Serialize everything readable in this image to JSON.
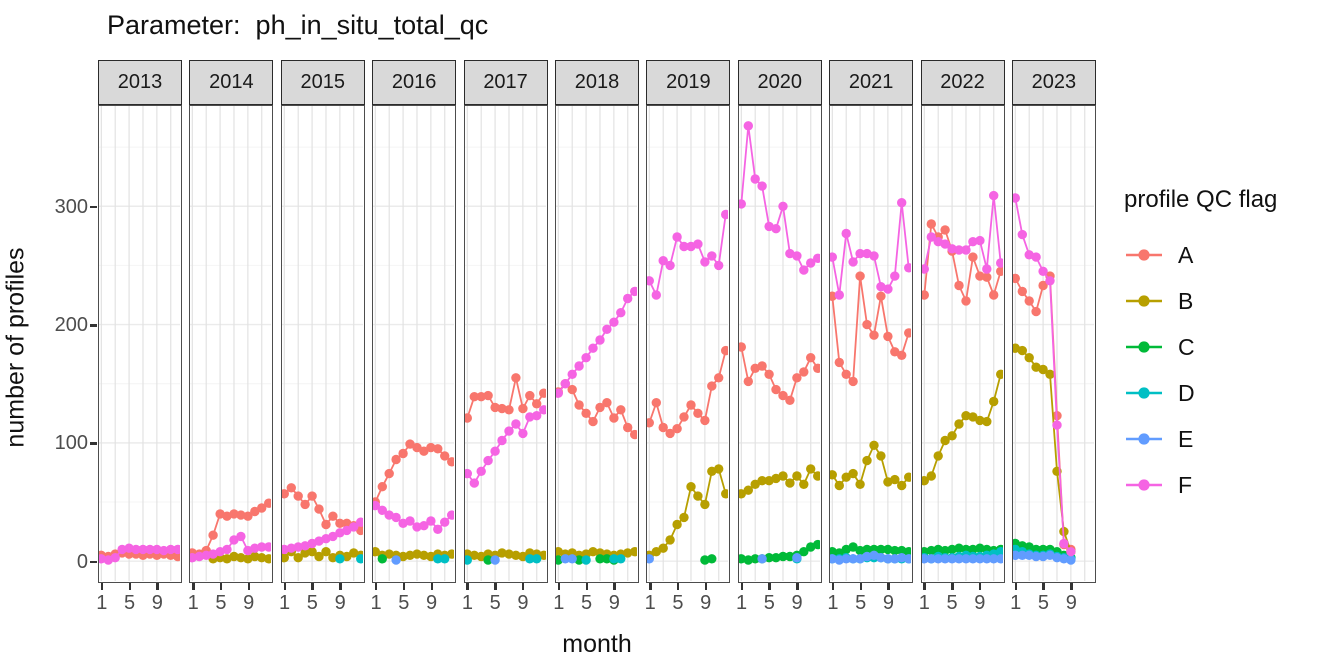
{
  "title": "Parameter:  ph_in_situ_total_qc",
  "axes": {
    "x_label": "month",
    "y_label": "number of profiles",
    "y_ticks": [
      0,
      100,
      200,
      300
    ],
    "x_ticks": [
      1,
      5,
      9
    ]
  },
  "legend": {
    "title": "profile QC flag",
    "entries": [
      {
        "label": "A",
        "color": "#F8766D"
      },
      {
        "label": "B",
        "color": "#B79F00"
      },
      {
        "label": "C",
        "color": "#00BA38"
      },
      {
        "label": "D",
        "color": "#00BFC4"
      },
      {
        "label": "E",
        "color": "#619CFF"
      },
      {
        "label": "F",
        "color": "#F564E3"
      }
    ]
  },
  "chart_data": {
    "type": "line",
    "title": "Parameter:  ph_in_situ_total_qc",
    "xlabel": "month",
    "ylabel": "number of profiles",
    "ylim": [
      -18,
      386
    ],
    "xlim": [
      0.45,
      12.55
    ],
    "y_major_gridlines": [
      0,
      100,
      200,
      300
    ],
    "y_minor_gridlines": [
      50,
      150,
      250,
      350
    ],
    "x_gridlines": [
      1,
      3,
      5,
      7,
      9,
      11
    ],
    "legend_position": "right",
    "series_order": [
      "A",
      "B",
      "C",
      "D",
      "E",
      "F"
    ],
    "series_colors": {
      "A": "#F8766D",
      "B": "#B79F00",
      "C": "#00BA38",
      "D": "#00BFC4",
      "E": "#619CFF",
      "F": "#F564E3"
    },
    "facets": [
      {
        "year": "2013",
        "x": [
          1,
          2,
          3,
          4,
          5,
          6,
          7,
          8,
          9,
          10,
          11,
          12
        ],
        "series": {
          "A": [
            5,
            4,
            6,
            7,
            6,
            6,
            5,
            6,
            5,
            6,
            5,
            4
          ],
          "F": [
            2,
            1,
            3,
            10,
            11,
            10,
            10,
            10,
            10,
            9,
            10,
            10
          ]
        }
      },
      {
        "year": "2014",
        "x": [
          1,
          2,
          3,
          4,
          5,
          6,
          7,
          8,
          9,
          10,
          11,
          12
        ],
        "series": {
          "A": [
            7,
            6,
            9,
            22,
            40,
            38,
            40,
            39,
            38,
            42,
            45,
            49
          ],
          "B": [
            null,
            null,
            null,
            2,
            3,
            2,
            4,
            3,
            2,
            4,
            3,
            2
          ],
          "F": [
            3,
            4,
            5,
            6,
            8,
            10,
            18,
            21,
            9,
            11,
            12,
            12
          ]
        }
      },
      {
        "year": "2015",
        "x": [
          1,
          2,
          3,
          4,
          5,
          6,
          7,
          8,
          9,
          10,
          11,
          12
        ],
        "series": {
          "A": [
            57,
            62,
            55,
            48,
            55,
            44,
            31,
            38,
            32,
            32,
            30,
            26
          ],
          "B": [
            3,
            8,
            3,
            7,
            8,
            4,
            8,
            3,
            5,
            4,
            7,
            5
          ],
          "D": [
            null,
            null,
            null,
            null,
            null,
            null,
            null,
            null,
            2,
            null,
            null,
            2
          ],
          "F": [
            10,
            11,
            12,
            13,
            15,
            17,
            19,
            21,
            24,
            26,
            29,
            33
          ]
        }
      },
      {
        "year": "2016",
        "x": [
          1,
          2,
          3,
          4,
          5,
          6,
          7,
          8,
          9,
          10,
          11,
          12
        ],
        "series": {
          "A": [
            50,
            63,
            74,
            86,
            91,
            99,
            96,
            93,
            96,
            95,
            89,
            84
          ],
          "B": [
            8,
            5,
            6,
            5,
            4,
            5,
            6,
            5,
            4,
            6,
            5,
            6
          ],
          "C": [
            null,
            2,
            null,
            null,
            null,
            null,
            null,
            null,
            null,
            null,
            null,
            null
          ],
          "D": [
            null,
            null,
            null,
            null,
            null,
            null,
            null,
            null,
            null,
            2,
            2,
            null
          ],
          "E": [
            null,
            null,
            null,
            1,
            null,
            null,
            null,
            null,
            null,
            null,
            null,
            null
          ],
          "F": [
            47,
            43,
            39,
            37,
            32,
            34,
            29,
            30,
            34,
            27,
            33,
            39
          ]
        }
      },
      {
        "year": "2017",
        "x": [
          1,
          2,
          3,
          4,
          5,
          6,
          7,
          8,
          9,
          10,
          11,
          12
        ],
        "series": {
          "A": [
            121,
            139,
            139,
            140,
            130,
            129,
            128,
            155,
            129,
            140,
            133,
            142
          ],
          "B": [
            6,
            5,
            4,
            6,
            5,
            7,
            6,
            5,
            4,
            7,
            6,
            5
          ],
          "C": [
            null,
            null,
            null,
            1,
            null,
            null,
            null,
            null,
            null,
            null,
            null,
            null
          ],
          "D": [
            1,
            null,
            null,
            null,
            null,
            null,
            null,
            null,
            null,
            2,
            2,
            null
          ],
          "E": [
            null,
            null,
            null,
            null,
            1,
            null,
            null,
            null,
            null,
            null,
            null,
            null
          ],
          "F": [
            74,
            66,
            76,
            85,
            93,
            102,
            110,
            116,
            108,
            122,
            123,
            128
          ]
        }
      },
      {
        "year": "2018",
        "x": [
          1,
          2,
          3,
          4,
          5,
          6,
          7,
          8,
          9,
          10,
          11,
          12
        ],
        "series": {
          "A": [
            143,
            150,
            145,
            132,
            125,
            118,
            130,
            134,
            121,
            128,
            113,
            107
          ],
          "B": [
            8,
            6,
            7,
            5,
            6,
            8,
            7,
            6,
            5,
            6,
            7,
            8
          ],
          "C": [
            1,
            null,
            null,
            1,
            null,
            null,
            2,
            2,
            1,
            null,
            null,
            null
          ],
          "D": [
            null,
            null,
            null,
            null,
            1,
            null,
            null,
            null,
            2,
            2,
            null,
            null
          ],
          "E": [
            null,
            2,
            2,
            null,
            null,
            null,
            null,
            null,
            null,
            null,
            null,
            null
          ],
          "F": [
            142,
            150,
            158,
            165,
            172,
            180,
            187,
            196,
            202,
            210,
            222,
            228
          ]
        }
      },
      {
        "year": "2019",
        "x": [
          1,
          2,
          3,
          4,
          5,
          6,
          7,
          8,
          9,
          10,
          11,
          12
        ],
        "series": {
          "A": [
            117,
            134,
            113,
            108,
            112,
            122,
            132,
            125,
            119,
            148,
            155,
            178
          ],
          "B": [
            5,
            8,
            11,
            18,
            31,
            37,
            63,
            55,
            48,
            76,
            78,
            57
          ],
          "C": [
            null,
            null,
            null,
            null,
            null,
            null,
            null,
            null,
            1,
            2,
            null,
            null
          ],
          "E": [
            2,
            null,
            null,
            null,
            null,
            null,
            null,
            null,
            null,
            null,
            null,
            null
          ],
          "F": [
            237,
            225,
            254,
            250,
            274,
            266,
            266,
            268,
            253,
            258,
            250,
            293
          ]
        }
      },
      {
        "year": "2020",
        "x": [
          1,
          2,
          3,
          4,
          5,
          6,
          7,
          8,
          9,
          10,
          11,
          12
        ],
        "series": {
          "A": [
            181,
            152,
            163,
            165,
            158,
            145,
            140,
            136,
            155,
            160,
            172,
            163
          ],
          "B": [
            57,
            60,
            65,
            68,
            68,
            70,
            72,
            66,
            72,
            65,
            78,
            72
          ],
          "C": [
            2,
            1,
            2,
            2,
            3,
            3,
            4,
            4,
            5,
            8,
            12,
            14
          ],
          "D": [
            null,
            null,
            null,
            null,
            null,
            null,
            null,
            null,
            2,
            null,
            null,
            null
          ],
          "E": [
            null,
            null,
            null,
            2,
            null,
            null,
            null,
            null,
            3,
            null,
            null,
            null
          ],
          "F": [
            302,
            368,
            323,
            317,
            283,
            281,
            300,
            260,
            258,
            246,
            252,
            256
          ]
        }
      },
      {
        "year": "2021",
        "x": [
          1,
          2,
          3,
          4,
          5,
          6,
          7,
          8,
          9,
          10,
          11,
          12
        ],
        "series": {
          "A": [
            224,
            168,
            158,
            152,
            241,
            200,
            191,
            224,
            190,
            177,
            174,
            193
          ],
          "B": [
            73,
            64,
            71,
            74,
            65,
            85,
            98,
            89,
            67,
            69,
            64,
            71
          ],
          "C": [
            8,
            7,
            10,
            12,
            9,
            10,
            10,
            10,
            10,
            9,
            9,
            8
          ],
          "D": [
            2,
            2,
            3,
            2,
            2,
            3,
            3,
            3,
            2,
            2,
            2,
            2
          ],
          "E": [
            2,
            1,
            2,
            2,
            2,
            4,
            5,
            3,
            2,
            2,
            3,
            2
          ],
          "F": [
            257,
            225,
            277,
            253,
            260,
            260,
            258,
            232,
            230,
            241,
            303,
            248
          ]
        }
      },
      {
        "year": "2022",
        "x": [
          1,
          2,
          3,
          4,
          5,
          6,
          7,
          8,
          9,
          10,
          11,
          12
        ],
        "series": {
          "A": [
            225,
            285,
            274,
            280,
            262,
            233,
            220,
            257,
            241,
            240,
            225,
            245
          ],
          "B": [
            68,
            72,
            89,
            102,
            106,
            116,
            123,
            122,
            119,
            118,
            135,
            158
          ],
          "C": [
            8,
            9,
            10,
            9,
            10,
            11,
            10,
            10,
            11,
            10,
            9,
            10
          ],
          "D": [
            3,
            2,
            4,
            3,
            3,
            4,
            5,
            4,
            4,
            5,
            6,
            8
          ],
          "E": [
            2,
            2,
            2,
            2,
            2,
            2,
            2,
            2,
            2,
            2,
            2,
            2
          ],
          "F": [
            247,
            274,
            270,
            268,
            264,
            263,
            263,
            270,
            271,
            247,
            309,
            252
          ]
        }
      },
      {
        "year": "2023",
        "x": [
          1,
          2,
          3,
          4,
          5,
          6,
          7,
          8,
          9
        ],
        "series": {
          "A": [
            239,
            228,
            220,
            211,
            233,
            241,
            123,
            14,
            10
          ],
          "B": [
            180,
            178,
            172,
            164,
            162,
            158,
            76,
            25,
            8
          ],
          "C": [
            15,
            13,
            12,
            10,
            10,
            10,
            8,
            5,
            3
          ],
          "D": [
            10,
            8,
            6,
            5,
            5,
            6,
            4,
            3,
            2
          ],
          "E": [
            5,
            5,
            5,
            4,
            4,
            5,
            3,
            2,
            1
          ],
          "F": [
            307,
            276,
            259,
            257,
            245,
            237,
            115,
            15,
            8
          ]
        }
      }
    ]
  },
  "style_colors": {
    "strip_background": "#D9D9D9",
    "panel_border": "#4D4D4D",
    "major_grid": "#EBEBEB",
    "minor_grid": "#F4F4F4",
    "vertical_grid": "#E2E2E2",
    "tick_text": "#4D4D4D"
  }
}
